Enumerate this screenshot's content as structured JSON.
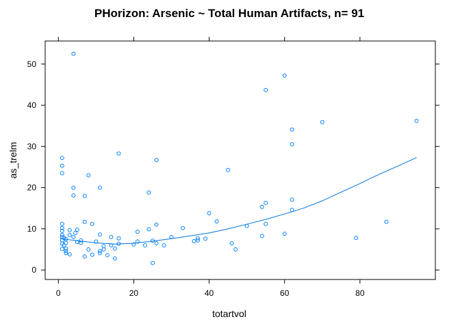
{
  "chart_data": {
    "type": "scatter",
    "title": "PHorizon: Arsenic ~ Total Human Artifacts, n= 91",
    "xlabel": "totartvol",
    "ylabel": "as_trelm",
    "xlim": [
      -3.5,
      100
    ],
    "ylim": [
      -2.3,
      55.6
    ],
    "x_ticks": [
      0,
      20,
      40,
      60,
      80
    ],
    "y_ticks": [
      0,
      10,
      20,
      30,
      40,
      50
    ],
    "grid": false,
    "colors": {
      "points": "#0080ff",
      "smooth": "#0072d6",
      "axes": "#000000"
    },
    "series": [
      {
        "type": "scatter",
        "points": [
          [
            1,
            27.2
          ],
          [
            1,
            25.3
          ],
          [
            1,
            23.5
          ],
          [
            1,
            11.2
          ],
          [
            1,
            10.2
          ],
          [
            1,
            9.5
          ],
          [
            1,
            8.5
          ],
          [
            1,
            8.0
          ],
          [
            1,
            7.2
          ],
          [
            1,
            6.4
          ],
          [
            1,
            5.1
          ],
          [
            1.5,
            7.8
          ],
          [
            1.5,
            6.0
          ],
          [
            2,
            7.5
          ],
          [
            2,
            6.6
          ],
          [
            2,
            5.2
          ],
          [
            2,
            4.6
          ],
          [
            2,
            4.1
          ],
          [
            3,
            9.7
          ],
          [
            3,
            8.5
          ],
          [
            3,
            3.8
          ],
          [
            4,
            52.5
          ],
          [
            4,
            20.0
          ],
          [
            4,
            18.1
          ],
          [
            4,
            8.0
          ],
          [
            4.5,
            9.0
          ],
          [
            5,
            9.8
          ],
          [
            5,
            6.8
          ],
          [
            6,
            6.6
          ],
          [
            6,
            7.2
          ],
          [
            7,
            18.0
          ],
          [
            7,
            11.7
          ],
          [
            7,
            3.3
          ],
          [
            8,
            23.0
          ],
          [
            8,
            5.0
          ],
          [
            9,
            11.2
          ],
          [
            9,
            3.7
          ],
          [
            10,
            6.9
          ],
          [
            11,
            20.0
          ],
          [
            11,
            8.6
          ],
          [
            11,
            4.6
          ],
          [
            11,
            4.1
          ],
          [
            12,
            5.8
          ],
          [
            12,
            5.0
          ],
          [
            13,
            3.6
          ],
          [
            14,
            8.0
          ],
          [
            14,
            6.0
          ],
          [
            15,
            5.2
          ],
          [
            15,
            2.8
          ],
          [
            16,
            28.3
          ],
          [
            16,
            7.7
          ],
          [
            16,
            6.4
          ],
          [
            20,
            6.2
          ],
          [
            21,
            9.3
          ],
          [
            21,
            6.9
          ],
          [
            23,
            6.0
          ],
          [
            24,
            18.8
          ],
          [
            24,
            9.9
          ],
          [
            25,
            7.1
          ],
          [
            25,
            1.7
          ],
          [
            26,
            26.7
          ],
          [
            26,
            11.0
          ],
          [
            26,
            6.5
          ],
          [
            28,
            6.0
          ],
          [
            30,
            8.0
          ],
          [
            33,
            10.2
          ],
          [
            36,
            7.0
          ],
          [
            37,
            7.2
          ],
          [
            37,
            7.7
          ],
          [
            39,
            7.6
          ],
          [
            40,
            13.8
          ],
          [
            42,
            11.8
          ],
          [
            45,
            24.3
          ],
          [
            46,
            6.5
          ],
          [
            47,
            5.0
          ],
          [
            50,
            10.7
          ],
          [
            54,
            15.3
          ],
          [
            54,
            8.3
          ],
          [
            55,
            43.7
          ],
          [
            55,
            16.3
          ],
          [
            55,
            11.2
          ],
          [
            60,
            47.2
          ],
          [
            60,
            8.8
          ],
          [
            62,
            34.1
          ],
          [
            62,
            30.5
          ],
          [
            62,
            17.1
          ],
          [
            62,
            14.6
          ],
          [
            70,
            35.9
          ],
          [
            79,
            7.8
          ],
          [
            87,
            11.7
          ],
          [
            95,
            36.2
          ]
        ]
      },
      {
        "type": "line",
        "points": [
          [
            0.5,
            7.6
          ],
          [
            5,
            7.1
          ],
          [
            10,
            6.6
          ],
          [
            15,
            6.3
          ],
          [
            20,
            6.5
          ],
          [
            25,
            7.0
          ],
          [
            30,
            7.6
          ],
          [
            35,
            8.3
          ],
          [
            40,
            9.0
          ],
          [
            45,
            10.0
          ],
          [
            50,
            11.1
          ],
          [
            55,
            12.3
          ],
          [
            60,
            13.6
          ],
          [
            65,
            15.0
          ],
          [
            70,
            16.8
          ],
          [
            75,
            18.9
          ],
          [
            80,
            21.0
          ],
          [
            85,
            23.2
          ],
          [
            90,
            25.2
          ],
          [
            95,
            27.3
          ]
        ]
      }
    ]
  }
}
